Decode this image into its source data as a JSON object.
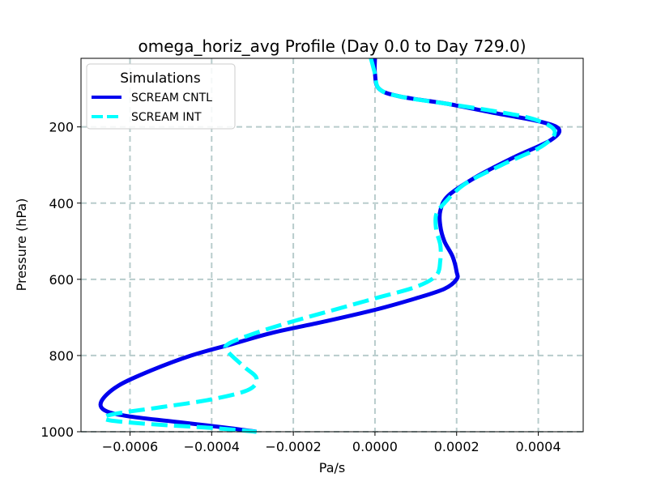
{
  "chart_data": {
    "type": "line",
    "title": "omega_horiz_avg Profile (Day 0.0 to Day 729.0)",
    "xlabel": "Pa/s",
    "ylabel": "Pressure (hPa)",
    "xlim": [
      -0.00072,
      0.00051
    ],
    "ylim": [
      1000,
      20
    ],
    "y_inverted": true,
    "grid": true,
    "x_ticks": [
      -0.0006,
      -0.0004,
      -0.0002,
      0.0,
      0.0002,
      0.0004
    ],
    "x_tick_labels": [
      "−0.0006",
      "−0.0004",
      "−0.0002",
      "0.0000",
      "0.0002",
      "0.0004"
    ],
    "y_ticks": [
      200,
      400,
      600,
      800,
      1000
    ],
    "y_tick_labels": [
      "200",
      "400",
      "600",
      "800",
      "1000"
    ],
    "legend": {
      "title": "Simulations",
      "placement": "top-left"
    },
    "series": [
      {
        "name": "SCREAM CNTL",
        "color": "#0000ee",
        "style": "solid",
        "x": [
          0.0,
          0.0,
          1e-05,
          6e-05,
          0.00018,
          0.0003,
          0.0004,
          0.00045,
          0.00043,
          0.00034,
          0.00025,
          0.00018,
          0.00016,
          0.00016,
          0.00017,
          0.00019,
          0.0002,
          0.0002,
          0.00017,
          0.0001,
          0.0,
          -0.00012,
          -0.00025,
          -0.00035,
          -0.00045,
          -0.00055,
          -0.00063,
          -0.00067,
          -0.00066,
          -0.0006,
          -0.00048,
          -0.00036,
          -0.00029
        ],
        "y": [
          20,
          60,
          100,
          120,
          140,
          165,
          185,
          205,
          235,
          280,
          330,
          380,
          420,
          460,
          500,
          540,
          580,
          600,
          625,
          650,
          680,
          710,
          740,
          770,
          800,
          840,
          880,
          920,
          945,
          960,
          975,
          990,
          1000
        ]
      },
      {
        "name": "SCREAM INT",
        "color": "#00ffff",
        "style": "dashed",
        "x": [
          -1e-05,
          0.0,
          1e-05,
          6e-05,
          0.00018,
          0.0003,
          0.00039,
          0.00044,
          0.00041,
          0.00031,
          0.00022,
          0.00017,
          0.00015,
          0.00015,
          0.00016,
          0.00016,
          0.00015,
          0.0001,
          0.0,
          -0.0001,
          -0.0002,
          -0.00029,
          -0.00036,
          -0.00036,
          -0.00032,
          -0.00029,
          -0.00031,
          -0.0004,
          -0.00052,
          -0.00062,
          -0.00066,
          -0.00065,
          -0.00055,
          -0.0004,
          -0.00029
        ],
        "y": [
          20,
          60,
          100,
          120,
          140,
          160,
          180,
          210,
          250,
          300,
          350,
          400,
          430,
          470,
          510,
          550,
          590,
          620,
          650,
          680,
          710,
          740,
          770,
          790,
          830,
          860,
          890,
          915,
          935,
          950,
          960,
          970,
          980,
          990,
          1000
        ]
      }
    ]
  }
}
